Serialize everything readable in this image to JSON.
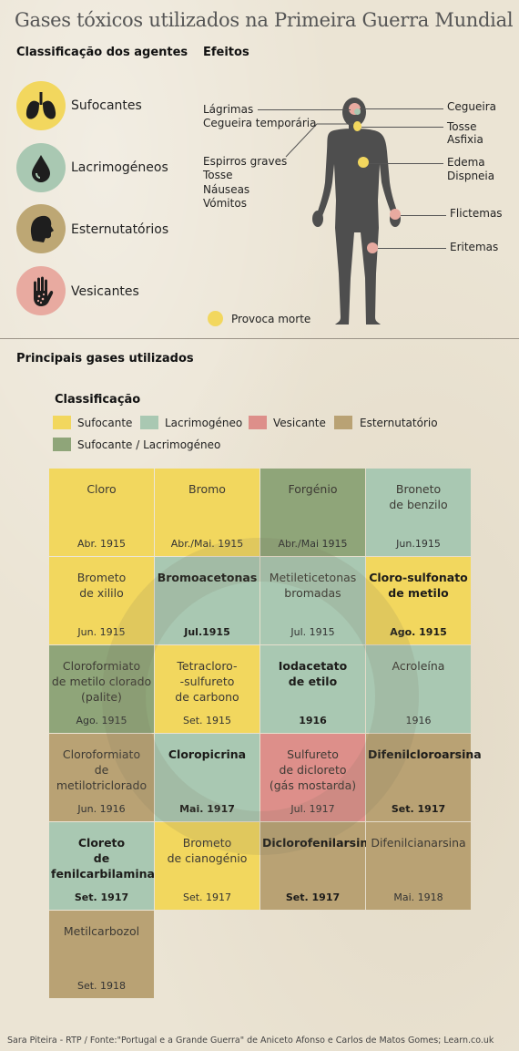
{
  "title": "Gases tóxicos utilizados na Primeira Guerra Mundial",
  "agents_heading": "Classificação dos agentes",
  "effects_heading": "Efeitos",
  "agents": [
    {
      "label": "Sufocantes",
      "icon": "lungs-icon",
      "color": "#f2d75e"
    },
    {
      "label": "Lacrimogéneos",
      "icon": "tear-drop-icon",
      "color": "#a9c8b2"
    },
    {
      "label": "Esternutatórios",
      "icon": "head-sneeze-icon",
      "color": "#bda774"
    },
    {
      "label": "Vesicantes",
      "icon": "blistered-hand-icon",
      "color": "#e8aaa0"
    }
  ],
  "effects": {
    "left": [
      "Lágrimas",
      "Cegueira temporária",
      "Espirros graves",
      "Tosse",
      "Náuseas",
      "Vómitos"
    ],
    "right": [
      "Cegueira",
      "Tosse",
      "Asfixia",
      "Edema",
      "Dispneia",
      "Flictemas",
      "Eritemas"
    ],
    "fatal_legend": "Provoca morte",
    "fatal_color": "#f2d75e"
  },
  "gases_heading": "Principais gases utilizados",
  "legend": {
    "title": "Classificação",
    "items": [
      {
        "label": "Sufocante",
        "color": "#f2d75e"
      },
      {
        "label": "Lacrimogéneo",
        "color": "#a9c8b2"
      },
      {
        "label": "Vesicante",
        "color": "#dd8f8a"
      },
      {
        "label": "Esternutatório",
        "color": "#b9a274"
      },
      {
        "label": "Sufocante / Lacrimogéneo",
        "color": "#8fa579"
      }
    ]
  },
  "gases": [
    {
      "name": "Cloro",
      "date": "Abr. 1915",
      "cls": "suf",
      "bold": false
    },
    {
      "name": "Bromo",
      "date": "Abr./Mai. 1915",
      "cls": "suf",
      "bold": false
    },
    {
      "name": "Forgénio",
      "date": "Abr./Mai 1915",
      "cls": "suflac",
      "bold": false
    },
    {
      "name": "Broneto\nde benzilo",
      "date": "Jun.1915",
      "cls": "lac",
      "bold": false
    },
    {
      "name": "Brometo\nde xililo",
      "date": "Jun. 1915",
      "cls": "suf",
      "bold": false
    },
    {
      "name": "Bromoacetonas",
      "date": "Jul.1915",
      "cls": "lac",
      "bold": true
    },
    {
      "name": "Metileticetonas\nbromadas",
      "date": "Jul. 1915",
      "cls": "lac",
      "bold": false
    },
    {
      "name": "Cloro-sulfonato\nde metilo",
      "date": "Ago. 1915",
      "cls": "suf",
      "bold": true
    },
    {
      "name": "Cloroformiato\nde metilo clorado\n(palite)",
      "date": "Ago. 1915",
      "cls": "suflac",
      "bold": false
    },
    {
      "name": "Tetracloro-\n-sulfureto\nde carbono",
      "date": "Set. 1915",
      "cls": "suf",
      "bold": false
    },
    {
      "name": "Iodacetato\nde etilo",
      "date": "1916",
      "cls": "lac",
      "bold": true
    },
    {
      "name": "Acroleína",
      "date": "1916",
      "cls": "lac",
      "bold": false
    },
    {
      "name": "Cloroformiato\nde\nmetilotriclorado",
      "date": "Jun. 1916",
      "cls": "est",
      "bold": false
    },
    {
      "name": "Cloropicrina",
      "date": "Mai. 1917",
      "cls": "lac",
      "bold": true
    },
    {
      "name": "Sulfureto\nde dicloreto\n(gás mostarda)",
      "date": "Jul. 1917",
      "cls": "ves",
      "bold": false
    },
    {
      "name": "Difenilcloroarsina",
      "date": "Set. 1917",
      "cls": "est",
      "bold": true
    },
    {
      "name": "Cloreto\nde\nfenilcarbilamina",
      "date": "Set. 1917",
      "cls": "lac",
      "bold": true
    },
    {
      "name": "Brometo\nde cianogénio",
      "date": "Set. 1917",
      "cls": "suf",
      "bold": false
    },
    {
      "name": "Diclorofenilarsina",
      "date": "Set. 1917",
      "cls": "est",
      "bold": true
    },
    {
      "name": "Difenilcianarsina",
      "date": "Mai. 1918",
      "cls": "est",
      "bold": false
    },
    {
      "name": "Metilcarbozol",
      "date": "Set. 1918",
      "cls": "est",
      "bold": false
    }
  ],
  "footer": "Sara Piteira - RTP  /  Fonte:\"Portugal e a Grande Guerra\" de Aniceto Afonso e Carlos de Matos Gomes; Learn.co.uk"
}
